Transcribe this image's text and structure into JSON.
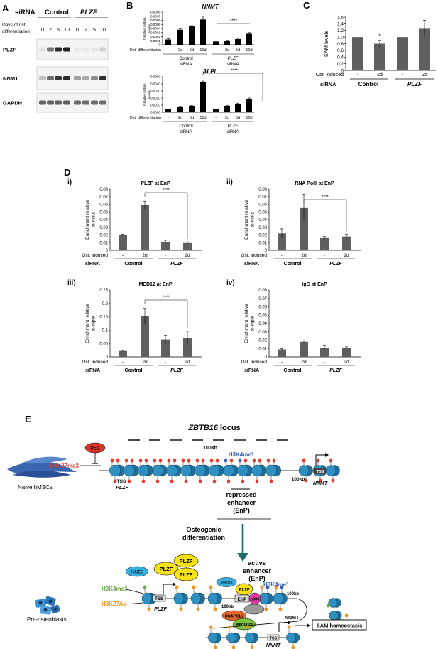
{
  "panel_letters": {
    "a": "A",
    "b": "B",
    "c": "C",
    "d": "D",
    "e": "E"
  },
  "panelA": {
    "sirna_label": "siRNA",
    "control_label": "Control",
    "plzf_label": "PLZF",
    "days_label_1": "Days of ost.",
    "days_label_2": "differentiation",
    "days": [
      "0",
      "2",
      "5",
      "10",
      "0",
      "2",
      "5",
      "10"
    ],
    "blots": [
      {
        "name": "PLZF",
        "intensities": [
          0.05,
          0.55,
          0.9,
          0.95,
          0.02,
          0.02,
          0.03,
          0.12
        ]
      },
      {
        "name": "NNMT",
        "intensities": [
          0.2,
          0.6,
          0.85,
          0.9,
          0.35,
          0.3,
          0.45,
          0.9
        ]
      },
      {
        "name": "GAPDH",
        "intensities": [
          0.65,
          0.65,
          0.65,
          0.65,
          0.6,
          0.6,
          0.6,
          0.6
        ]
      }
    ]
  },
  "panelB": {
    "row_label": "Ost. differentiation",
    "x_labels": [
      "-",
      "2d",
      "5d",
      "10d",
      "-",
      "2d",
      "5d",
      "10d"
    ],
    "group1_line1": "Control",
    "group1_line2": "siRNA",
    "group2_line1": "PLZF",
    "group2_line2": "siRNA",
    "sig": "****"
  },
  "panelC": {
    "sig_star": "*",
    "row1_label": "Ost. induced",
    "row2_label": "siRNA",
    "x_labels": [
      "-",
      "2d",
      "-",
      "2d"
    ],
    "group1": "Control",
    "group2": "PLZF"
  },
  "panelD": {
    "row1_label": "Ost. induced",
    "row2_label": "siRNA",
    "x_labels": [
      "-",
      "2d",
      "-",
      "2d"
    ],
    "group1": "Control",
    "group2": "PLZF",
    "ylabel_1": "Enrichment relative",
    "ylabel_2": "to Input",
    "sig": "****"
  },
  "panelE": {
    "locus_gene": "ZBTB16",
    "locus_word": "locus",
    "scale": "100kb",
    "naive_label": "Naive hMSCs",
    "preost_label": "Pre-osteoblasts",
    "pcg": "PcG",
    "h3k27me3": "H3K27me3",
    "h3k4me1": "H3K4me1",
    "h3k4me3": "H3K4me3",
    "h3k27ac": "H3K27Ac",
    "tss": "TSS",
    "plzf_gene": "PLZF",
    "nnmt_gene": "NNMT",
    "nnmt_protein": "NNMT",
    "repressed_1": "repressed",
    "repressed_2": "enhancer",
    "repressed_3": "(EnP)",
    "osteo_1": "Osteogenic",
    "osteo_2": "differentiation",
    "active_1": "active",
    "active_2": "enhancer",
    "active_3": "(EnP)",
    "jmjd3": "JMJD3",
    "plzf_protein": "PLZF",
    "enp": "EnP",
    "p300": "p300",
    "rnapol2": "RNAPOL2",
    "mediator": "Mediator",
    "sam": "SAM homeostasis",
    "colors": {
      "red": "#e53b2e",
      "blue": "#3a5fb0",
      "green": "#6aa84f",
      "orange": "#f0941f",
      "yellow": "#f7e21a",
      "nuc": "#2e8fc0"
    }
  },
  "chart_data": [
    {
      "type": "bar",
      "title": "NNMT",
      "ylabel": "Relative mRNA levels",
      "ylim": [
        0,
        0.0008
      ],
      "yticks": [
        "0.0008",
        "0.0007",
        "0.0006",
        "0.0005",
        "0.0004",
        "0.0003",
        "0.0002",
        "0.0001",
        "0"
      ],
      "categories": [
        "-",
        "2d",
        "5d",
        "10d",
        "-",
        "2d",
        "5d",
        "10d"
      ],
      "values": [
        0.00013,
        0.00037,
        0.00045,
        0.00062,
        8e-05,
        0.0001,
        0.00014,
        0.00027
      ],
      "errors": [
        2e-05,
        2e-05,
        2e-05,
        6e-05,
        1e-05,
        1e-05,
        2e-05,
        3e-05
      ]
    },
    {
      "type": "bar",
      "title": "ALPL",
      "ylabel": "Relative mRNA levels",
      "ylim": [
        0,
        0.005
      ],
      "yticks": [
        "0.0050",
        "0.0040",
        "0.0030",
        "0.0020",
        "0.0010",
        "0.0000"
      ],
      "categories": [
        "-",
        "2d",
        "5d",
        "10d",
        "-",
        "2d",
        "5d",
        "10d"
      ],
      "values": [
        0.0004,
        0.0008,
        0.0009,
        0.0043,
        0.0004,
        0.0009,
        0.0012,
        0.0019
      ],
      "errors": [
        5e-05,
        5e-05,
        5e-05,
        0.0001,
        5e-05,
        5e-05,
        8e-05,
        0.0001
      ]
    },
    {
      "type": "bar",
      "title": "",
      "ylabel": "SAM levels",
      "ylim": [
        0,
        1.6
      ],
      "yticks": [
        "1.6",
        "1.4",
        "1.2",
        "1.0",
        "0.8",
        "0.6",
        "0.4",
        "0.2",
        "0"
      ],
      "categories": [
        "-",
        "2d",
        "-",
        "2d"
      ],
      "values": [
        1.0,
        0.8,
        1.0,
        1.25
      ],
      "errors": [
        0.0,
        0.1,
        0.0,
        0.25
      ]
    },
    {
      "type": "bar",
      "title": "PLZF at EnP",
      "numeral": "i)",
      "ylabel": "Enrichment relative to Input",
      "ylim": [
        0,
        0.08
      ],
      "yticks": [
        "0.08",
        "0.07",
        "0.06",
        "0.05",
        "0.04",
        "0.03",
        "0.02",
        "0.01",
        "0"
      ],
      "categories": [
        "-",
        "2d",
        "-",
        "2d"
      ],
      "values": [
        0.02,
        0.059,
        0.011,
        0.0095
      ],
      "errors": [
        0.001,
        0.005,
        0.002,
        0.0015
      ]
    },
    {
      "type": "bar",
      "title": "RNA PolII at EnP",
      "numeral": "ii)",
      "ylabel": "Enrichment relative to Input",
      "ylim": [
        0,
        0.08
      ],
      "yticks": [
        "0.08",
        "0.07",
        "0.06",
        "0.05",
        "0.04",
        "0.03",
        "0.02",
        "0.01",
        "0"
      ],
      "categories": [
        "-",
        "2d",
        "-",
        "2d"
      ],
      "values": [
        0.022,
        0.056,
        0.016,
        0.018
      ],
      "errors": [
        0.006,
        0.017,
        0.002,
        0.003
      ]
    },
    {
      "type": "bar",
      "title": "MED12 at EnP",
      "numeral": "iii)",
      "ylabel": "Enrichment relative to Input",
      "ylim": [
        0,
        0.25
      ],
      "yticks": [
        "0.25",
        "0.2",
        "0.15",
        "0.1",
        "0.05",
        "0"
      ],
      "categories": [
        "-",
        "2d",
        "-",
        "2d"
      ],
      "values": [
        0.022,
        0.152,
        0.065,
        0.07
      ],
      "errors": [
        0.002,
        0.03,
        0.016,
        0.026
      ]
    },
    {
      "type": "bar",
      "title": "IgG at EnP",
      "numeral": "iv)",
      "ylabel": "Enrichment relative to Input",
      "ylim": [
        0,
        0.08
      ],
      "yticks": [
        "0.08",
        "0.07",
        "0.06",
        "0.05",
        "0.04",
        "0.03",
        "0.02",
        "0.01",
        "0"
      ],
      "categories": [
        "-",
        "2d",
        "-",
        "2d"
      ],
      "values": [
        0.009,
        0.018,
        0.011,
        0.011
      ],
      "errors": [
        0.001,
        0.002,
        0.002,
        0.001
      ]
    }
  ]
}
